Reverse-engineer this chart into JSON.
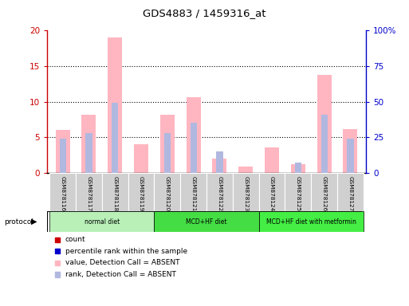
{
  "title": "GDS4883 / 1459316_at",
  "samples": [
    "GSM878116",
    "GSM878117",
    "GSM878118",
    "GSM878119",
    "GSM878120",
    "GSM878121",
    "GSM878122",
    "GSM878123",
    "GSM878124",
    "GSM878125",
    "GSM878126",
    "GSM878127"
  ],
  "value_absent": [
    6.0,
    8.2,
    19.0,
    4.0,
    8.2,
    10.6,
    2.0,
    0.9,
    3.6,
    1.2,
    13.8,
    6.2
  ],
  "rank_absent_pct": [
    24,
    28,
    49,
    null,
    28,
    35,
    15,
    null,
    null,
    7.5,
    41,
    24
  ],
  "ylim_left": [
    0,
    20
  ],
  "ylim_right": [
    0,
    100
  ],
  "yticks_left": [
    0,
    5,
    10,
    15,
    20
  ],
  "yticks_right": [
    0,
    25,
    50,
    75,
    100
  ],
  "ytick_labels_right": [
    "0",
    "25",
    "50",
    "75",
    "100%"
  ],
  "protocol_groups": [
    {
      "label": "normal diet",
      "start": 0,
      "end": 3,
      "color": "#aaeaaa"
    },
    {
      "label": "MCD+HF diet",
      "start": 4,
      "end": 7,
      "color": "#22cc22"
    },
    {
      "label": "MCD+HF diet with metformin",
      "start": 8,
      "end": 11,
      "color": "#33ee33"
    }
  ],
  "bar_width": 0.55,
  "color_value_absent": "#ffb6c1",
  "color_rank_absent": "#b0b8e0",
  "color_value_present": "#cc0000",
  "color_rank_present": "#0000cc",
  "legend_items": [
    {
      "color": "#cc0000",
      "label": "count",
      "marker": "s"
    },
    {
      "color": "#0000cc",
      "label": "percentile rank within the sample",
      "marker": "s"
    },
    {
      "color": "#ffb6c1",
      "label": "value, Detection Call = ABSENT",
      "marker": "s"
    },
    {
      "color": "#b0b8e0",
      "label": "rank, Detection Call = ABSENT",
      "marker": "s"
    }
  ],
  "axis_color_left": "#cc0000",
  "axis_color_right": "#0000cc",
  "dotted_yticks": [
    5,
    10,
    15
  ]
}
